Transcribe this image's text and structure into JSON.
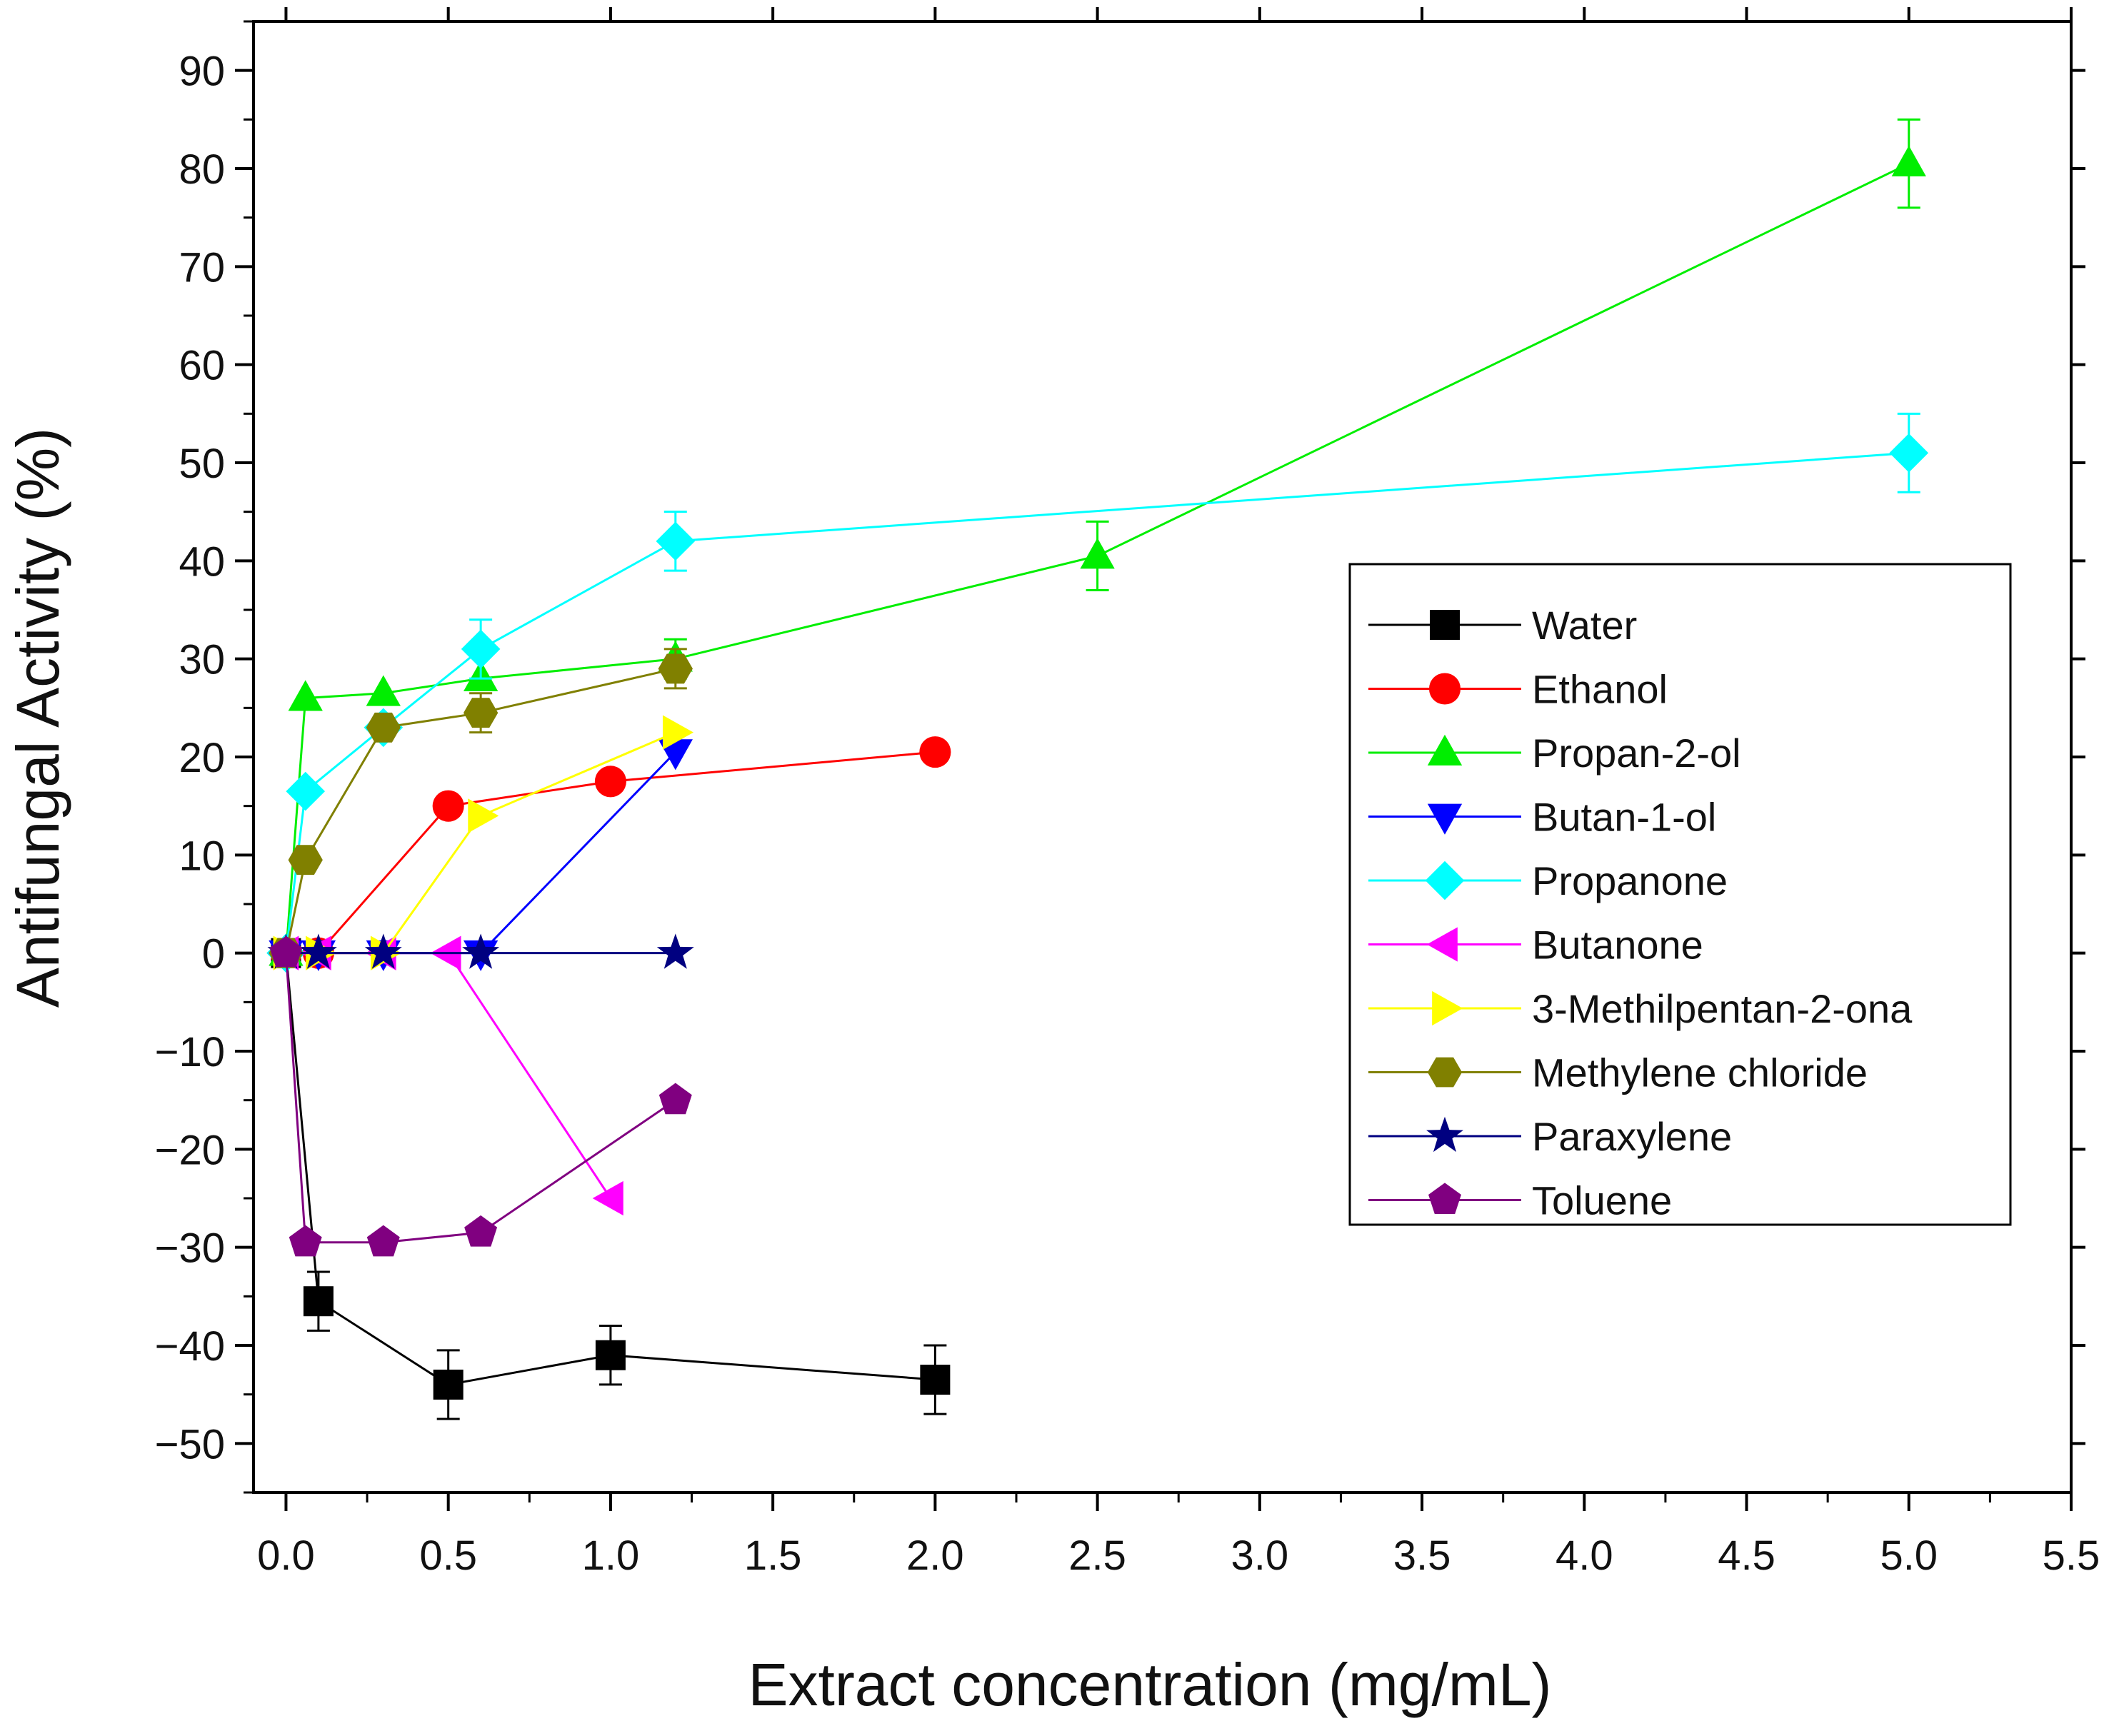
{
  "chart_data": {
    "type": "line",
    "title": "",
    "xlabel": "Extract concentration (mg/mL)",
    "ylabel": "Antifungal Activity (%)",
    "xlim": [
      -0.1,
      5.5
    ],
    "ylim": [
      -55,
      95
    ],
    "x_ticks": [
      "0.0",
      "0.5",
      "1.0",
      "1.5",
      "2.0",
      "2.5",
      "3.0",
      "3.5",
      "4.0",
      "4.5",
      "5.0",
      "5.5"
    ],
    "y_ticks": [
      "90",
      "80",
      "70",
      "60",
      "50",
      "40",
      "30",
      "20",
      "10",
      "0",
      "−10",
      "−20",
      "−30",
      "−40",
      "−50"
    ],
    "x_tick_values": [
      0,
      0.5,
      1,
      1.5,
      2,
      2.5,
      3,
      3.5,
      4,
      4.5,
      5,
      5.5
    ],
    "y_tick_values": [
      90,
      80,
      70,
      60,
      50,
      40,
      30,
      20,
      10,
      0,
      -10,
      -20,
      -30,
      -40,
      -50
    ],
    "grid": false,
    "legend_position": "right",
    "series": [
      {
        "name": "Water",
        "color": "#000000",
        "marker": "square",
        "x": [
          0,
          0.1,
          0.5,
          1.0,
          2.0
        ],
        "y": [
          0,
          -35.5,
          -44,
          -41,
          -43.5
        ],
        "err": [
          0,
          3,
          3.5,
          3,
          3.5
        ]
      },
      {
        "name": "Ethanol",
        "color": "#ff0000",
        "marker": "circle",
        "x": [
          0,
          0.1,
          0.5,
          1.0,
          2.0
        ],
        "y": [
          0,
          0,
          15,
          17.5,
          20.5
        ],
        "err": [
          0,
          0,
          0,
          0,
          0
        ]
      },
      {
        "name": "Propan-2-ol",
        "color": "#00ee00",
        "marker": "triangle-up",
        "x": [
          0,
          0.06,
          0.3,
          0.6,
          1.2,
          2.5,
          5.0
        ],
        "y": [
          0,
          26,
          26.5,
          28,
          30,
          40.5,
          80.5
        ],
        "err": [
          0,
          0,
          0,
          0,
          2,
          3.5,
          4.5
        ]
      },
      {
        "name": "Butan-1-ol",
        "color": "#0000ff",
        "marker": "triangle-down",
        "x": [
          0,
          0.1,
          0.3,
          0.6,
          1.2
        ],
        "y": [
          0,
          0,
          0,
          0,
          20.5
        ],
        "err": [
          0,
          0,
          0,
          0,
          0
        ]
      },
      {
        "name": "Propanone",
        "color": "#00ffff",
        "marker": "diamond",
        "x": [
          0,
          0.06,
          0.3,
          0.6,
          1.2,
          5.0
        ],
        "y": [
          0,
          16.5,
          23,
          31,
          42,
          51
        ],
        "err": [
          0,
          0,
          0,
          3,
          3,
          4
        ]
      },
      {
        "name": "Butanone",
        "color": "#ff00ff",
        "marker": "triangle-left",
        "x": [
          0,
          0.1,
          0.3,
          0.5,
          1.0
        ],
        "y": [
          0,
          0,
          0,
          0,
          -25
        ],
        "err": [
          0,
          0,
          0,
          0,
          0
        ]
      },
      {
        "name": "3-Methilpentan-2-ona",
        "color": "#ffff00",
        "marker": "triangle-right",
        "x": [
          0,
          0.1,
          0.3,
          0.6,
          1.2
        ],
        "y": [
          0,
          0,
          0,
          14,
          22.5
        ],
        "err": [
          0,
          0,
          0,
          0,
          0
        ]
      },
      {
        "name": "Methylene chloride",
        "color": "#808000",
        "marker": "hexagon",
        "x": [
          0,
          0.06,
          0.3,
          0.6,
          1.2
        ],
        "y": [
          0,
          9.5,
          23,
          24.5,
          29
        ],
        "err": [
          0,
          0,
          0,
          2,
          2
        ]
      },
      {
        "name": "Paraxylene",
        "color": "#000080",
        "marker": "star",
        "x": [
          0,
          0.1,
          0.3,
          0.6,
          1.2
        ],
        "y": [
          0,
          0,
          0,
          0,
          0
        ],
        "err": [
          0,
          0,
          0,
          0,
          0
        ]
      },
      {
        "name": "Toluene",
        "color": "#800080",
        "marker": "pentagon",
        "x": [
          0,
          0.06,
          0.3,
          0.6,
          1.2
        ],
        "y": [
          0,
          -29.5,
          -29.5,
          -28.5,
          -15
        ],
        "err": [
          0,
          0,
          0,
          0,
          0
        ]
      }
    ]
  }
}
